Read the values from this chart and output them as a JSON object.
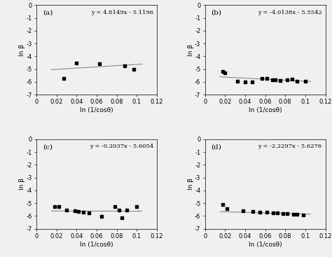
{
  "panels": [
    {
      "label": "(a)",
      "equation": "y = 4.8149x - 5.1196",
      "slope": 4.8149,
      "intercept": -5.1196,
      "scatter_x": [
        0.027,
        0.04,
        0.063,
        0.088,
        0.097
      ],
      "scatter_y": [
        -5.75,
        -4.55,
        -4.6,
        -4.75,
        -5.0
      ],
      "line_xrange": [
        0.015,
        0.105
      ]
    },
    {
      "label": "(b)",
      "equation": "y = -4.0138x - 5.5542",
      "slope": -4.0138,
      "intercept": -5.5542,
      "scatter_x": [
        0.018,
        0.02,
        0.032,
        0.04,
        0.047,
        0.057,
        0.062,
        0.067,
        0.07,
        0.075,
        0.082,
        0.087,
        0.092,
        0.1
      ],
      "scatter_y": [
        -5.2,
        -5.3,
        -5.95,
        -6.0,
        -6.0,
        -5.75,
        -5.75,
        -5.85,
        -5.85,
        -5.9,
        -5.82,
        -5.78,
        -5.95,
        -5.95
      ],
      "line_xrange": [
        0.015,
        0.105
      ]
    },
    {
      "label": "(c)",
      "equation": "y = -0.2037x - 5.6054",
      "slope": -0.2037,
      "intercept": -5.6054,
      "scatter_x": [
        0.018,
        0.022,
        0.03,
        0.038,
        0.042,
        0.047,
        0.052,
        0.065,
        0.078,
        0.082,
        0.085,
        0.09,
        0.1
      ],
      "scatter_y": [
        -5.25,
        -5.27,
        -5.55,
        -5.6,
        -5.65,
        -5.72,
        -5.78,
        -6.02,
        -5.28,
        -5.55,
        -6.12,
        -5.55,
        -5.27
      ],
      "line_xrange": [
        0.015,
        0.105
      ]
    },
    {
      "label": "(d)",
      "equation": "y = -2.2297x - 5.6276",
      "slope": -2.2297,
      "intercept": -5.6276,
      "scatter_x": [
        0.018,
        0.022,
        0.038,
        0.048,
        0.055,
        0.062,
        0.068,
        0.072,
        0.078,
        0.082,
        0.088,
        0.092,
        0.098
      ],
      "scatter_y": [
        -5.1,
        -5.45,
        -5.6,
        -5.65,
        -5.68,
        -5.72,
        -5.75,
        -5.78,
        -5.82,
        -5.82,
        -5.88,
        -5.88,
        -5.9
      ],
      "line_xrange": [
        0.015,
        0.105
      ]
    }
  ],
  "xlim": [
    0,
    0.12
  ],
  "ylim": [
    -7,
    0
  ],
  "xticks": [
    0,
    0.02,
    0.04,
    0.06,
    0.08,
    0.1,
    0.12
  ],
  "yticks": [
    0,
    -1,
    -2,
    -3,
    -4,
    -5,
    -6,
    -7
  ],
  "xlabel": "ln (1/cosθ)",
  "ylabel": "ln β",
  "line_color": "#888888",
  "scatter_color": "#000000",
  "bg_color": "#f0f0f0",
  "plot_bg": "#f0f0f0"
}
